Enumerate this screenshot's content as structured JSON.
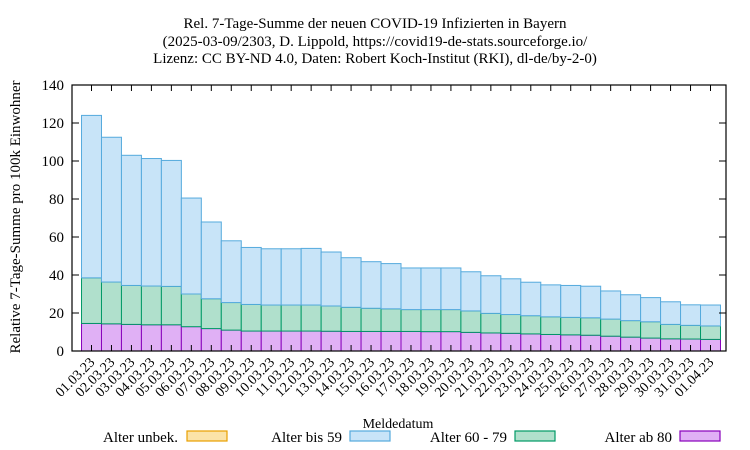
{
  "chart_data": {
    "type": "bar",
    "stacked": true,
    "title": [
      "Rel. 7-Tage-Summe der neuen COVID-19 Infizierten in Bayern",
      "(2025-03-09/2303, D. Lippold, https://covid19-de-stats.sourceforge.io/",
      "Lizenz: CC BY-ND 4.0, Daten: Robert Koch-Institut (RKI), dl-de/by-2-0)"
    ],
    "xlabel": "Meldedatum",
    "ylabel": "Relative 7-Tage-Summe pro 100k Einwohner",
    "ylim": [
      0,
      140
    ],
    "yticks": [
      0,
      20,
      40,
      60,
      80,
      100,
      120,
      140
    ],
    "grid": false,
    "legend_position": "bottom",
    "categories": [
      "01.03.23",
      "02.03.23",
      "03.03.23",
      "04.03.23",
      "05.03.23",
      "06.03.23",
      "07.03.23",
      "08.03.23",
      "09.03.23",
      "10.03.23",
      "11.03.23",
      "12.03.23",
      "13.03.23",
      "14.03.23",
      "15.03.23",
      "16.03.23",
      "17.03.23",
      "18.03.23",
      "19.03.23",
      "20.03.23",
      "21.03.23",
      "22.03.23",
      "23.03.23",
      "24.03.23",
      "25.03.23",
      "26.03.23",
      "27.03.23",
      "28.03.23",
      "29.03.23",
      "30.03.23",
      "31.03.23",
      "01.04.23"
    ],
    "series": [
      {
        "name": "Alter ab 80",
        "fill": "#e0b0f5",
        "stroke": "#8800bb",
        "values": [
          14.5,
          14.3,
          14.0,
          13.8,
          13.8,
          12.8,
          11.8,
          11.0,
          10.5,
          10.5,
          10.5,
          10.5,
          10.4,
          10.3,
          10.3,
          10.3,
          10.3,
          10.2,
          10.2,
          9.8,
          9.5,
          9.3,
          9.0,
          8.7,
          8.5,
          8.3,
          7.8,
          7.3,
          6.8,
          6.4,
          6.3,
          6.1
        ]
      },
      {
        "name": "Alter 60 - 79",
        "fill": "#b0e0cc",
        "stroke": "#009966",
        "values": [
          24.0,
          22.0,
          20.5,
          20.4,
          20.2,
          17.2,
          15.7,
          14.5,
          14.0,
          13.7,
          13.7,
          13.7,
          13.3,
          12.7,
          12.2,
          11.9,
          11.5,
          11.6,
          11.6,
          11.3,
          10.3,
          9.9,
          9.6,
          9.3,
          9.2,
          9.2,
          9.0,
          8.7,
          8.6,
          7.6,
          7.2,
          7.1
        ]
      },
      {
        "name": "Alter bis 59",
        "fill": "#c8e4f8",
        "stroke": "#55aadd",
        "values": [
          85.5,
          76.2,
          68.5,
          67.1,
          66.3,
          50.5,
          40.4,
          32.5,
          30.0,
          29.6,
          29.6,
          29.8,
          28.4,
          26.1,
          24.5,
          23.8,
          21.9,
          21.9,
          21.9,
          20.6,
          19.8,
          18.8,
          17.6,
          16.8,
          16.8,
          16.6,
          14.8,
          13.6,
          12.7,
          11.9,
          10.8,
          11.0
        ]
      },
      {
        "name": "Alter unbek.",
        "fill": "#fbe3a8",
        "stroke": "#e8a000",
        "values": [
          0,
          0,
          0,
          0,
          0,
          0,
          0,
          0,
          0,
          0,
          0,
          0,
          0,
          0,
          0,
          0,
          0,
          0,
          0,
          0,
          0,
          0,
          0,
          0,
          0,
          0,
          0,
          0,
          0,
          0,
          0,
          0
        ]
      }
    ],
    "legend_order": [
      "Alter unbek.",
      "Alter bis 59",
      "Alter 60 - 79",
      "Alter ab 80"
    ]
  }
}
